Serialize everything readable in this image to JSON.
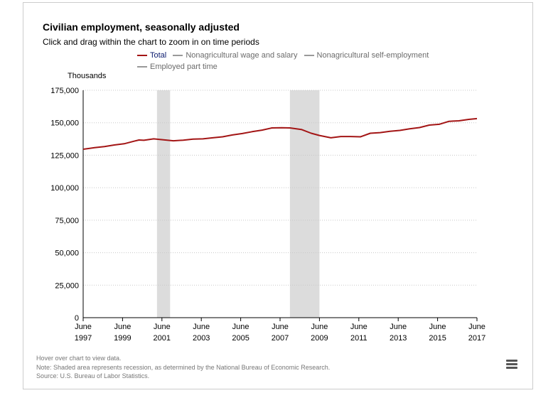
{
  "title": "Civilian employment, seasonally adjusted",
  "subtitle": "Click and drag within the chart to zoom in on time periods",
  "y_unit_label": "Thousands",
  "legend": [
    {
      "label": "Total",
      "color": "#a31515",
      "active": true
    },
    {
      "label": "Nonagricultural wage and salary",
      "color": "#999999",
      "active": false
    },
    {
      "label": "Nonagricultural self-employment",
      "color": "#999999",
      "active": false
    },
    {
      "label": "Employed part time",
      "color": "#999999",
      "active": false
    }
  ],
  "footer": {
    "hover": "Hover over chart to view data.",
    "note": "Note: Shaded area represents recession, as determined by the National Bureau of Economic Research.",
    "source": "Source: U.S. Bureau of Labor Statistics."
  },
  "menu_icon": "hamburger-menu-icon",
  "chart_data": {
    "type": "line",
    "title": "Civilian employment, seasonally adjusted",
    "ylabel": "Thousands",
    "ylim": [
      0,
      175000
    ],
    "y_ticks": [
      0,
      25000,
      50000,
      75000,
      100000,
      125000,
      150000,
      175000
    ],
    "y_tick_labels": [
      "0",
      "25,000",
      "50,000",
      "75,000",
      "100,000",
      "125,000",
      "150,000",
      "175,000"
    ],
    "xlim": [
      1997.417,
      2017.417
    ],
    "x_ticks": [
      1997.417,
      1999.417,
      2001.417,
      2003.417,
      2005.417,
      2007.417,
      2009.417,
      2011.417,
      2013.417,
      2015.417,
      2017.417
    ],
    "x_tick_labels": [
      [
        "June",
        "1997"
      ],
      [
        "June",
        "1999"
      ],
      [
        "June",
        "2001"
      ],
      [
        "June",
        "2003"
      ],
      [
        "June",
        "2005"
      ],
      [
        "June",
        "2007"
      ],
      [
        "June",
        "2009"
      ],
      [
        "June",
        "2011"
      ],
      [
        "June",
        "2013"
      ],
      [
        "June",
        "2015"
      ],
      [
        "June",
        "2017"
      ]
    ],
    "grid": "horizontal dotted",
    "legend_position": "top",
    "recessions": [
      {
        "start": 2001.167,
        "end": 2001.833
      },
      {
        "start": 2007.917,
        "end": 2009.417
      }
    ],
    "series": [
      {
        "name": "Total",
        "color": "#a31515",
        "x": [
          1997.417,
          1998.0,
          1998.5,
          1999.0,
          1999.5,
          2000.0,
          2000.25,
          2000.5,
          2001.0,
          2001.5,
          2002.0,
          2002.5,
          2003.0,
          2003.5,
          2004.0,
          2004.5,
          2005.0,
          2005.5,
          2006.0,
          2006.5,
          2007.0,
          2007.5,
          2007.917,
          2008.5,
          2009.0,
          2009.417,
          2010.0,
          2010.5,
          2011.0,
          2011.5,
          2012.0,
          2012.5,
          2013.0,
          2013.5,
          2014.0,
          2014.5,
          2015.0,
          2015.5,
          2016.0,
          2016.5,
          2017.0,
          2017.417
        ],
        "values": [
          129600,
          130800,
          131700,
          132900,
          133800,
          135800,
          136700,
          136500,
          137600,
          136900,
          136100,
          136600,
          137400,
          137600,
          138400,
          139200,
          140600,
          141700,
          143100,
          144300,
          146000,
          146100,
          146000,
          144800,
          141900,
          140200,
          138400,
          139400,
          139400,
          139200,
          141900,
          142400,
          143400,
          144100,
          145300,
          146300,
          148200,
          148800,
          151100,
          151500,
          152600,
          153200
        ]
      }
    ]
  }
}
